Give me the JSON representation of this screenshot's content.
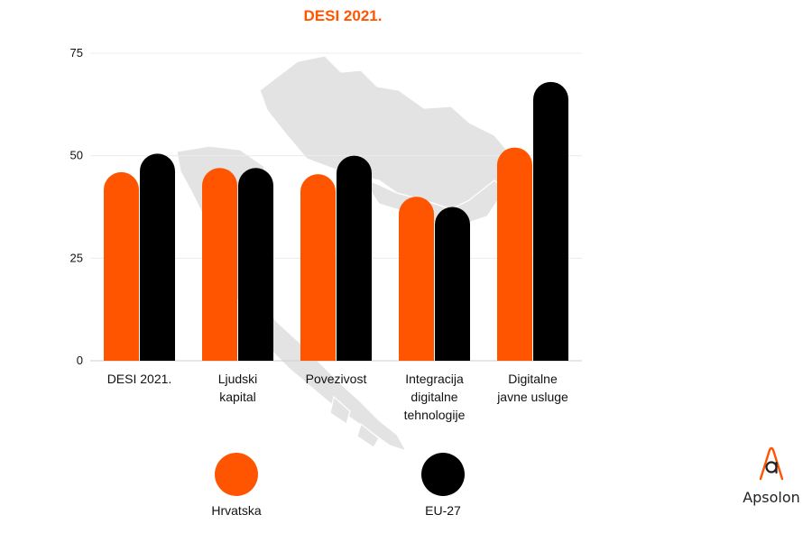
{
  "chart_data": {
    "type": "bar",
    "title": "DESI 2021.",
    "categories": [
      [
        "DESI 2021."
      ],
      [
        "Ljudski",
        "kapital"
      ],
      [
        "Povezivost"
      ],
      [
        "Integracija",
        "digitalne",
        "tehnologije"
      ],
      [
        "Digitalne",
        "javne usluge"
      ]
    ],
    "series": [
      {
        "name": "Hrvatska",
        "color": "#ff5500",
        "values": [
          46,
          47,
          45.5,
          40,
          52
        ]
      },
      {
        "name": "EU-27",
        "color": "#000000",
        "values": [
          50.5,
          47,
          50,
          37.5,
          68
        ]
      }
    ],
    "yticks": [
      0,
      25,
      50,
      75
    ],
    "ylim": [
      0,
      75
    ],
    "grid": true,
    "legend": "bottom",
    "background": "map of Croatia (light grey)"
  },
  "brand": {
    "name": "Apsolon",
    "accent": "#ff5500"
  }
}
